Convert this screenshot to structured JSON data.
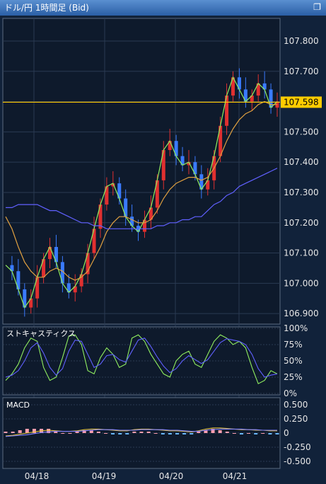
{
  "window": {
    "title": "ドル/円 1時間足 (Bid)",
    "restore_icon": "restore-window-icon"
  },
  "colors": {
    "background": "#0e1a2c",
    "up_candle": "#e03030",
    "down_candle": "#3a7bff",
    "fast_ma": "#90ee60",
    "mid_ma": "#e0a040",
    "slow_ma": "#6060ff",
    "price_line": "#ffcc00",
    "stoch_k": "#90ee60",
    "stoch_d": "#6060ff",
    "macd_line": "#e0c040",
    "signal_line": "#8080ff",
    "hist_pos": "#ff9fb0",
    "hist_neg": "#6ab8ff"
  },
  "price_panel": {
    "current_price": "107.598",
    "current_price_value": 107.598
  },
  "stoch_panel": {
    "title": "ストキャスティクス"
  },
  "macd_panel": {
    "title": "MACD"
  },
  "chart_data": [
    {
      "type": "line",
      "title": "",
      "y_ticks": [
        "107.800",
        "107.700",
        "107.600",
        "107.500",
        "107.400",
        "107.300",
        "107.200",
        "107.100",
        "107.000",
        "106.900"
      ],
      "ylim": [
        106.87,
        107.87
      ],
      "x_ticks": [
        "04/18",
        "04/19",
        "04/20",
        "04/21"
      ],
      "series": [
        {
          "values": [
            107.06,
            107.04,
            106.98,
            106.92,
            106.95,
            107.02,
            107.08,
            107.12,
            107.07,
            107.0,
            106.97,
            106.99,
            107.03,
            107.1,
            107.18,
            107.26,
            107.32,
            107.33,
            107.28,
            107.22,
            107.19,
            107.17,
            107.21,
            107.25,
            107.34,
            107.44,
            107.47,
            107.42,
            107.39,
            107.4,
            107.36,
            107.31,
            107.34,
            107.42,
            107.52,
            107.62,
            107.68,
            107.64,
            107.6,
            107.62,
            107.66,
            107.64,
            107.58,
            107.6
          ]
        },
        {
          "values": [
            107.22,
            107.18,
            107.12,
            107.07,
            107.04,
            107.02,
            107.02,
            107.04,
            107.05,
            107.04,
            107.02,
            107.01,
            107.02,
            107.04,
            107.08,
            107.12,
            107.17,
            107.2,
            107.22,
            107.22,
            107.21,
            107.2,
            107.2,
            107.21,
            107.24,
            107.28,
            107.31,
            107.33,
            107.34,
            107.35,
            107.35,
            107.34,
            107.35,
            107.38,
            107.42,
            107.47,
            107.51,
            107.54,
            107.56,
            107.57,
            107.59,
            107.6,
            107.59,
            107.59
          ]
        },
        {
          "values": [
            107.25,
            107.25,
            107.26,
            107.26,
            107.26,
            107.26,
            107.25,
            107.24,
            107.24,
            107.23,
            107.22,
            107.21,
            107.2,
            107.2,
            107.19,
            107.19,
            107.18,
            107.18,
            107.18,
            107.18,
            107.18,
            107.18,
            107.18,
            107.18,
            107.19,
            107.19,
            107.2,
            107.2,
            107.21,
            107.21,
            107.22,
            107.22,
            107.24,
            107.26,
            107.27,
            107.29,
            107.3,
            107.32,
            107.33,
            107.34,
            107.35,
            107.36,
            107.37,
            107.38
          ]
        }
      ]
    },
    {
      "type": "line",
      "title": "ストキャスティクス",
      "y_ticks": [
        "100%",
        "75%",
        "50%",
        "25%",
        "0%"
      ],
      "ylim": [
        0,
        100
      ],
      "series": [
        {
          "values": [
            20,
            30,
            45,
            70,
            85,
            80,
            40,
            20,
            25,
            55,
            88,
            90,
            75,
            35,
            30,
            55,
            70,
            60,
            40,
            45,
            85,
            90,
            80,
            60,
            45,
            30,
            25,
            50,
            60,
            65,
            45,
            40,
            60,
            80,
            90,
            85,
            75,
            80,
            70,
            40,
            15,
            20,
            35,
            30
          ]
        },
        {
          "values": [
            25,
            28,
            35,
            50,
            70,
            78,
            62,
            40,
            28,
            38,
            65,
            82,
            80,
            60,
            40,
            45,
            58,
            60,
            52,
            48,
            65,
            82,
            85,
            72,
            56,
            42,
            32,
            38,
            50,
            58,
            52,
            46,
            52,
            65,
            78,
            84,
            82,
            80,
            75,
            60,
            38,
            25,
            28,
            30
          ]
        }
      ]
    },
    {
      "type": "line",
      "title": "MACD",
      "y_ticks": [
        "0.500",
        "0.250",
        "0",
        "-0.250",
        "-0.500"
      ],
      "ylim": [
        -0.6,
        0.6
      ],
      "series": [
        {
          "values": [
            -0.05,
            -0.04,
            -0.02,
            0.0,
            0.02,
            0.04,
            0.05,
            0.04,
            0.03,
            0.03,
            0.04,
            0.06,
            0.07,
            0.07,
            0.06,
            0.05,
            0.04,
            0.04,
            0.06,
            0.07,
            0.07,
            0.06,
            0.05,
            0.04,
            0.04,
            0.03,
            0.02,
            0.04,
            0.07,
            0.09,
            0.09,
            0.08,
            0.07,
            0.06,
            0.06,
            0.05,
            0.05,
            0.04,
            0.04
          ]
        },
        {
          "values": [
            -0.06,
            -0.05,
            -0.04,
            -0.03,
            -0.01,
            0.01,
            0.02,
            0.03,
            0.03,
            0.03,
            0.03,
            0.04,
            0.05,
            0.06,
            0.06,
            0.06,
            0.05,
            0.05,
            0.05,
            0.06,
            0.06,
            0.06,
            0.06,
            0.05,
            0.05,
            0.04,
            0.03,
            0.03,
            0.05,
            0.06,
            0.07,
            0.07,
            0.07,
            0.07,
            0.06,
            0.06,
            0.05,
            0.05,
            0.05
          ]
        }
      ]
    }
  ]
}
